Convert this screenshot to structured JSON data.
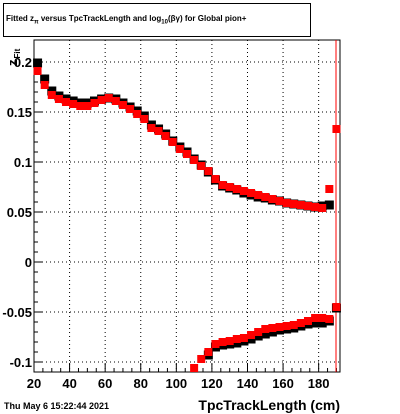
{
  "chart_data": {
    "type": "scatter",
    "title": "Fitted z_{π} versus TpcTrackLength and log_{10}(βγ) for Global pion+",
    "title_parts": {
      "a": "Fitted  z",
      "a_sub": "π",
      "b": "  versus  TpcTrackLength and log",
      "b_sub": "10",
      "c": "(βγ) for Global pion+"
    },
    "xlabel": "TpcTrackLength (cm)",
    "ylabel": "z",
    "ylabel_sub": "Fit",
    "xlim": [
      20,
      192
    ],
    "ylim": [
      -0.11,
      0.222
    ],
    "grid": true,
    "x_ticks": [
      20,
      40,
      60,
      80,
      100,
      120,
      140,
      160,
      180
    ],
    "x_tick_labels": [
      "20",
      "40",
      "60",
      "80",
      "100",
      "120",
      "140",
      "160",
      "180"
    ],
    "y_ticks": [
      0.2,
      0.15,
      0.1,
      0.05,
      0,
      -0.05,
      -0.1
    ],
    "y_tick_labels": [
      "0.2",
      "0.15",
      "0.1",
      "0.05",
      "0",
      "-0.05",
      "-0.1"
    ],
    "timestamp": "Thu May  6 15:22:44 2021",
    "series": [
      {
        "color": "#000000",
        "marker": "square",
        "upper": {
          "x": [
            22,
            26,
            30,
            34,
            38,
            42,
            46,
            50,
            54,
            58,
            62,
            66,
            70,
            74,
            78,
            82,
            86,
            90,
            94,
            98,
            102,
            106,
            110,
            114,
            118,
            122,
            126,
            130,
            134,
            138,
            142,
            146,
            150,
            154,
            158,
            162,
            166,
            170,
            174,
            178,
            182,
            186
          ],
          "y": [
            0.199,
            0.183,
            0.171,
            0.166,
            0.163,
            0.161,
            0.159,
            0.159,
            0.161,
            0.163,
            0.164,
            0.163,
            0.159,
            0.155,
            0.151,
            0.146,
            0.137,
            0.133,
            0.128,
            0.121,
            0.115,
            0.11,
            0.103,
            0.097,
            0.09,
            0.082,
            0.076,
            0.074,
            0.072,
            0.069,
            0.067,
            0.065,
            0.064,
            0.062,
            0.061,
            0.059,
            0.058,
            0.057,
            0.056,
            0.055,
            0.056,
            0.057
          ]
        },
        "lower": {
          "x": [
            118,
            122,
            126,
            130,
            134,
            138,
            142,
            146,
            150,
            154,
            158,
            162,
            166,
            170,
            174,
            178,
            182,
            186,
            190
          ],
          "y": [
            -0.093,
            -0.085,
            -0.083,
            -0.082,
            -0.081,
            -0.079,
            -0.077,
            -0.074,
            -0.072,
            -0.07,
            -0.068,
            -0.067,
            -0.066,
            -0.064,
            -0.062,
            -0.061,
            -0.061,
            -0.059,
            -0.046
          ]
        }
      },
      {
        "color": "#ff0000",
        "marker": "square",
        "upper": {
          "x": [
            22,
            26,
            30,
            34,
            38,
            42,
            46,
            50,
            54,
            58,
            62,
            66,
            70,
            74,
            78,
            82,
            86,
            90,
            94,
            98,
            102,
            106,
            110,
            114,
            118,
            122,
            126,
            130,
            134,
            138,
            142,
            146,
            150,
            154,
            158,
            162,
            166,
            170,
            174,
            178,
            182,
            186,
            190
          ],
          "y": [
            0.191,
            0.177,
            0.167,
            0.163,
            0.16,
            0.158,
            0.156,
            0.156,
            0.159,
            0.162,
            0.164,
            0.161,
            0.157,
            0.153,
            0.148,
            0.143,
            0.134,
            0.131,
            0.126,
            0.12,
            0.113,
            0.108,
            0.102,
            0.096,
            0.091,
            0.083,
            0.077,
            0.075,
            0.073,
            0.071,
            0.069,
            0.067,
            0.065,
            0.063,
            0.061,
            0.059,
            0.058,
            0.057,
            0.056,
            0.055,
            0.054,
            0.073,
            0.133
          ]
        },
        "lower": {
          "x": [
            110,
            114,
            118,
            122,
            126,
            130,
            134,
            138,
            142,
            146,
            150,
            154,
            158,
            162,
            166,
            170,
            174,
            178,
            182,
            186,
            190
          ],
          "y": [
            -0.106,
            -0.097,
            -0.09,
            -0.082,
            -0.08,
            -0.079,
            -0.077,
            -0.076,
            -0.073,
            -0.07,
            -0.067,
            -0.066,
            -0.065,
            -0.064,
            -0.063,
            -0.061,
            -0.059,
            -0.056,
            -0.056,
            -0.057,
            -0.045
          ]
        }
      }
    ]
  }
}
